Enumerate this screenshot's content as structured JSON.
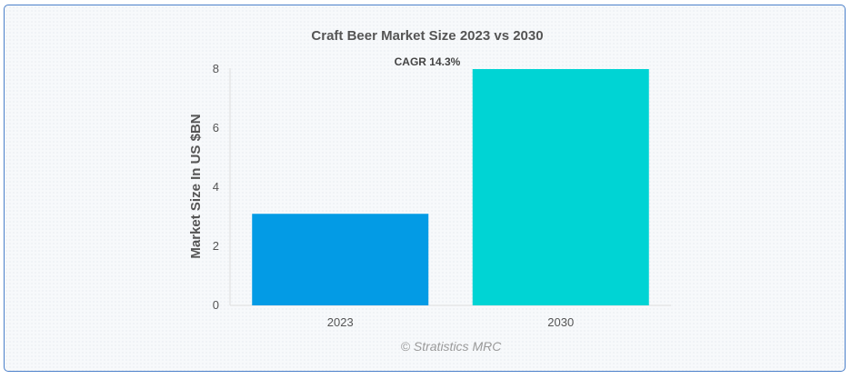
{
  "chart_data": {
    "type": "bar",
    "title": "Craft Beer Market Size 2023 vs 2030",
    "categories": [
      "2023",
      "2030"
    ],
    "values": [
      3.1,
      8.0
    ],
    "colors": [
      "#039be5",
      "#00d4d4"
    ],
    "ylabel": "Market Size In US $BN",
    "xlabel": "",
    "ylim": [
      0,
      8
    ],
    "yticks": [
      "0",
      "2",
      "4",
      "6",
      "8"
    ],
    "annotation": "CAGR 14.3%",
    "grid": false
  },
  "credit": "© Stratistics MRC"
}
